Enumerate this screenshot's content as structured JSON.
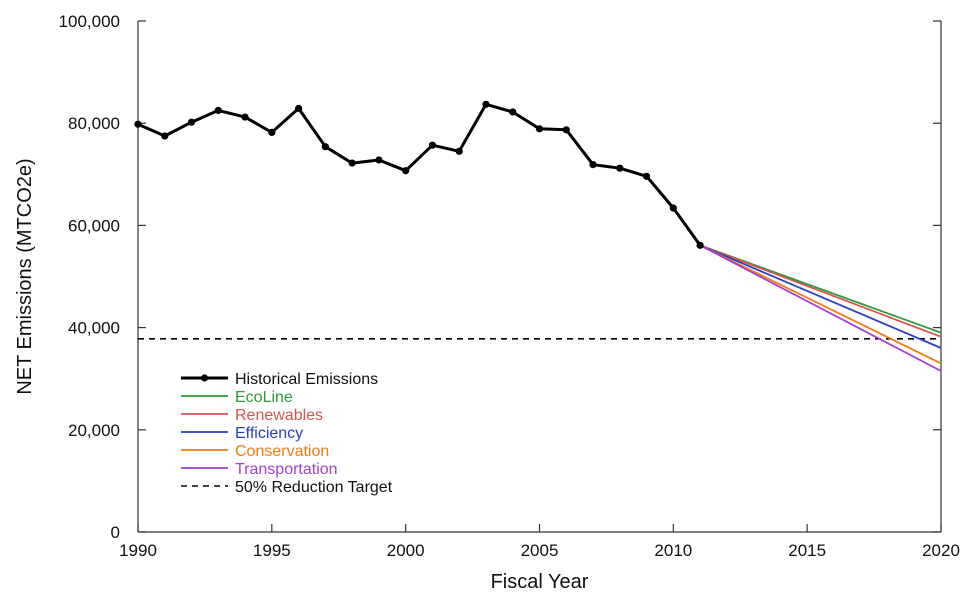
{
  "chart_data": {
    "type": "line",
    "xlabel": "Fiscal Year",
    "ylabel": "NET Emissions (MTCO2e)",
    "xlim": [
      1990,
      2020
    ],
    "ylim": [
      0,
      100000
    ],
    "x_ticks": [
      "1990",
      "1995",
      "2000",
      "2005",
      "2010",
      "2015",
      "2020"
    ],
    "y_ticks": [
      "0",
      "20,000",
      "40,000",
      "60,000",
      "80,000",
      "100,000"
    ],
    "x_tick_values": [
      1990,
      1995,
      2000,
      2005,
      2010,
      2015,
      2020
    ],
    "y_tick_values": [
      0,
      20000,
      40000,
      60000,
      80000,
      100000
    ],
    "grid": false,
    "legend_position": "bottom-left",
    "series": [
      {
        "name": "Historical Emissions",
        "color": "#000000",
        "style": "solid-markers",
        "x": [
          1990,
          1991,
          1992,
          1993,
          1994,
          1995,
          1996,
          1997,
          1998,
          1999,
          2000,
          2001,
          2002,
          2003,
          2004,
          2005,
          2006,
          2007,
          2008,
          2009,
          2010,
          2011
        ],
        "y": [
          79800,
          77500,
          80200,
          82500,
          81200,
          78200,
          82900,
          75400,
          72200,
          72800,
          70700,
          75700,
          74500,
          83700,
          82200,
          78900,
          78700,
          71900,
          71200,
          69600,
          63400,
          56100
        ]
      },
      {
        "name": "EcoLine",
        "color": "#2e9a3a",
        "style": "solid",
        "x": [
          2011,
          2020
        ],
        "y": [
          56100,
          39000
        ]
      },
      {
        "name": "Renewables",
        "color": "#d9534f",
        "style": "solid",
        "x": [
          2011,
          2020
        ],
        "y": [
          56100,
          38200
        ]
      },
      {
        "name": "Efficiency",
        "color": "#2b3fbf",
        "style": "solid",
        "x": [
          2011,
          2020
        ],
        "y": [
          56100,
          36000
        ]
      },
      {
        "name": "Conservation",
        "color": "#f07d10",
        "style": "solid",
        "x": [
          2011,
          2020
        ],
        "y": [
          56100,
          33000
        ]
      },
      {
        "name": "Transportation",
        "color": "#a23fd1",
        "style": "solid",
        "x": [
          2011,
          2020
        ],
        "y": [
          56100,
          31500
        ]
      },
      {
        "name": "50% Reduction Target",
        "color": "#000000",
        "style": "dashed",
        "x": [
          1990,
          2020
        ],
        "y": [
          37800,
          37800
        ]
      }
    ]
  }
}
